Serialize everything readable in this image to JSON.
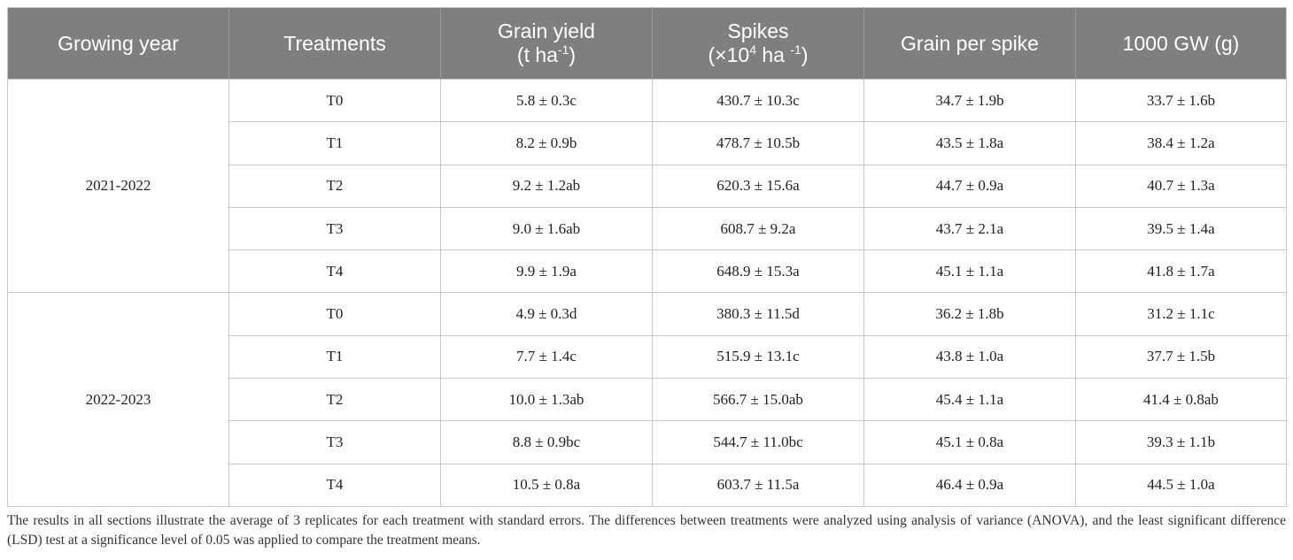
{
  "header": {
    "columns": [
      [
        [
          "Growing year"
        ]
      ],
      [
        [
          "Treatments"
        ]
      ],
      [
        [
          "Grain yield"
        ],
        [
          "(t ha",
          "-1",
          ")"
        ]
      ],
      [
        [
          "Spikes"
        ],
        [
          "(×10",
          "4",
          " ha ",
          "-1",
          ")"
        ]
      ],
      [
        [
          "Grain per spike"
        ]
      ],
      [
        [
          "1000 GW (g)"
        ]
      ]
    ]
  },
  "table": {
    "groups": [
      {
        "year": "2021-2022",
        "rows": [
          [
            "T0",
            "5.8 ± 0.3c",
            "430.7 ± 10.3c",
            "34.7 ± 1.9b",
            "33.7 ± 1.6b"
          ],
          [
            "T1",
            "8.2 ± 0.9b",
            "478.7 ± 10.5b",
            "43.5 ± 1.8a",
            "38.4 ± 1.2a"
          ],
          [
            "T2",
            "9.2 ± 1.2ab",
            "620.3 ± 15.6a",
            "44.7 ± 0.9a",
            "40.7 ± 1.3a"
          ],
          [
            "T3",
            "9.0 ± 1.6ab",
            "608.7 ± 9.2a",
            "43.7 ± 2.1a",
            "39.5 ± 1.4a"
          ],
          [
            "T4",
            "9.9 ± 1.9a",
            "648.9 ± 15.3a",
            "45.1 ± 1.1a",
            "41.8 ± 1.7a"
          ]
        ]
      },
      {
        "year": "2022-2023",
        "rows": [
          [
            "T0",
            "4.9 ± 0.3d",
            "380.3 ± 11.5d",
            "36.2 ± 1.8b",
            "31.2 ± 1.1c"
          ],
          [
            "T1",
            "7.7 ± 1.4c",
            "515.9 ± 13.1c",
            "43.8 ± 1.0a",
            "37.7 ± 1.5b"
          ],
          [
            "T2",
            "10.0 ± 1.3ab",
            "566.7 ± 15.0ab",
            "45.4 ± 1.1a",
            "41.4 ± 0.8ab"
          ],
          [
            "T3",
            "8.8 ± 0.9bc",
            "544.7 ± 11.0bc",
            "45.1 ± 0.8a",
            "39.3 ± 1.1b"
          ],
          [
            "T4",
            "10.5 ± 0.8a",
            "603.7 ± 11.5a",
            "46.4 ± 0.9a",
            "44.5 ± 1.0a"
          ]
        ]
      }
    ]
  },
  "footnote": "The results in all sections illustrate the average of 3 replicates for each treatment with standard errors. The differences between treatments were analyzed using analysis of variance (ANOVA), and the least significant difference (LSD) test at a significance level of 0.05 was applied to compare the treatment means."
}
